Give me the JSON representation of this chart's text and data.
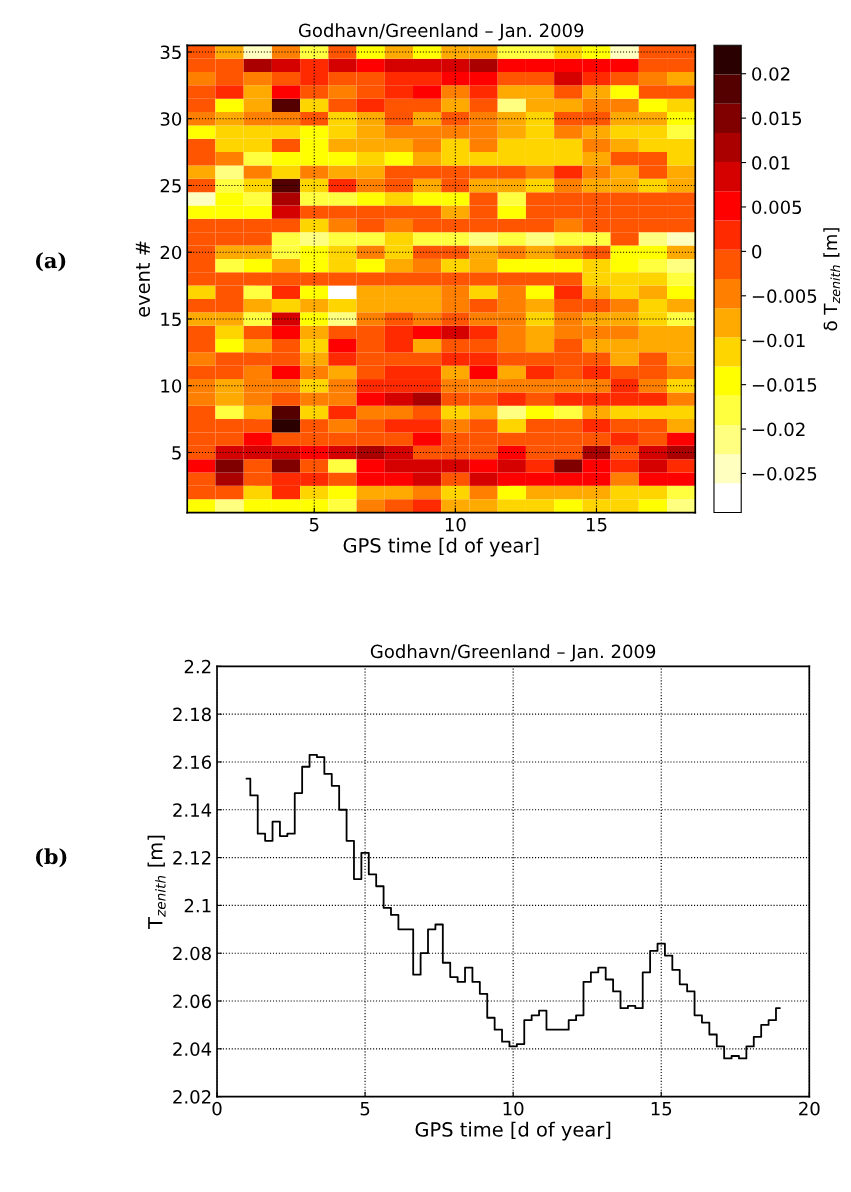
{
  "chart_data": [
    {
      "type": "heatmap",
      "title": "Godhavn/Greenland – Jan. 2009",
      "xlabel": "GPS time [d of year]",
      "ylabel": "event #",
      "clabel": "δ T$_{zenith}$ [m]",
      "annotations": [
        "(a)"
      ],
      "grid": true,
      "categories": [
        null,
        null,
        null,
        null,
        "5",
        null,
        null,
        null,
        null,
        "10",
        null,
        null,
        null,
        null,
        "15",
        null,
        null,
        null
      ],
      "y_categories": [
        "35",
        null,
        null,
        null,
        null,
        "30",
        null,
        null,
        null,
        null,
        "25",
        null,
        null,
        null,
        null,
        "20",
        null,
        null,
        null,
        null,
        "15",
        null,
        null,
        null,
        null,
        "10",
        null,
        null,
        null,
        null,
        "5",
        null,
        null,
        null,
        null
      ],
      "clim": [
        -0.0294,
        0.0232
      ],
      "cticks": [
        -0.025,
        -0.02,
        -0.015,
        -0.01,
        -0.005,
        0,
        0.005,
        0.01,
        0.015,
        0.02
      ],
      "colors": [
        "#ffffff",
        "#ffffbf",
        "#ffff80",
        "#ffff40",
        "#ffff00",
        "#ffd500",
        "#ffaa00",
        "#ff8000",
        "#ff5500",
        "#ff2a00",
        "#ff0000",
        "#d50000",
        "#aa0000",
        "#800000",
        "#550000",
        "#2a0000"
      ],
      "cells": [
        [
          -0.002,
          -0.008,
          -0.025,
          -0.005,
          -0.018,
          -0.002,
          -0.015,
          -0.008,
          -0.015,
          -0.008,
          -0.008,
          -0.018,
          -0.018,
          -0.011,
          -0.015,
          -0.025,
          -0.002,
          -0.002
        ],
        [
          -0.002,
          -0.002,
          0.012,
          0.008,
          0.002,
          0.008,
          0.005,
          0.008,
          0.008,
          0.008,
          0.012,
          0.005,
          0.005,
          0.005,
          0.005,
          0.005,
          -0.002,
          -0.002
        ],
        [
          -0.005,
          -0.002,
          -0.005,
          -0.002,
          0.002,
          -0.002,
          -0.002,
          0.002,
          0.002,
          0.005,
          0.005,
          -0.002,
          -0.002,
          0.008,
          0.002,
          -0.002,
          -0.005,
          -0.008
        ],
        [
          -0.002,
          0.002,
          -0.008,
          0.005,
          -0.002,
          -0.005,
          -0.002,
          0.002,
          0.005,
          -0.005,
          0.002,
          -0.008,
          -0.008,
          -0.002,
          -0.008,
          -0.015,
          -0.002,
          -0.002
        ],
        [
          -0.002,
          -0.015,
          -0.008,
          0.018,
          -0.011,
          -0.002,
          0.002,
          -0.002,
          -0.002,
          -0.008,
          -0.002,
          -0.021,
          -0.008,
          -0.008,
          -0.005,
          -0.005,
          -0.015,
          -0.011
        ],
        [
          -0.005,
          -0.008,
          -0.005,
          -0.005,
          -0.002,
          -0.011,
          -0.008,
          -0.002,
          -0.008,
          -0.002,
          -0.005,
          -0.008,
          -0.011,
          -0.002,
          -0.002,
          -0.008,
          -0.008,
          -0.015
        ],
        [
          -0.015,
          -0.011,
          -0.011,
          -0.011,
          -0.015,
          -0.011,
          -0.008,
          -0.005,
          -0.005,
          -0.005,
          -0.005,
          -0.008,
          -0.011,
          -0.005,
          -0.008,
          -0.011,
          -0.011,
          -0.018
        ],
        [
          -0.002,
          -0.011,
          -0.011,
          -0.002,
          -0.015,
          -0.008,
          -0.008,
          -0.008,
          -0.005,
          -0.011,
          -0.005,
          -0.011,
          -0.011,
          -0.011,
          -0.005,
          -0.008,
          -0.011,
          -0.011
        ],
        [
          -0.002,
          -0.005,
          -0.018,
          -0.015,
          -0.015,
          -0.015,
          -0.011,
          -0.015,
          -0.008,
          -0.011,
          -0.011,
          -0.011,
          -0.011,
          -0.011,
          -0.008,
          -0.002,
          -0.002,
          -0.011
        ],
        [
          -0.008,
          -0.021,
          -0.005,
          -0.011,
          -0.005,
          -0.008,
          -0.008,
          -0.002,
          -0.002,
          -0.002,
          -0.002,
          -0.002,
          -0.005,
          0.002,
          -0.005,
          -0.008,
          -0.002,
          -0.008
        ],
        [
          -0.002,
          -0.018,
          -0.011,
          0.018,
          -0.011,
          0.002,
          -0.005,
          -0.002,
          -0.008,
          -0.002,
          -0.008,
          -0.008,
          -0.011,
          -0.005,
          -0.008,
          -0.008,
          -0.011,
          -0.008
        ],
        [
          -0.025,
          -0.015,
          -0.018,
          0.012,
          -0.018,
          -0.018,
          -0.015,
          -0.011,
          -0.015,
          -0.015,
          -0.002,
          -0.018,
          -0.002,
          -0.002,
          -0.002,
          -0.002,
          -0.002,
          -0.002
        ],
        [
          -0.015,
          -0.015,
          -0.015,
          0.008,
          -0.002,
          -0.002,
          -0.002,
          -0.002,
          -0.002,
          -0.008,
          -0.002,
          -0.015,
          -0.002,
          -0.002,
          -0.002,
          -0.002,
          -0.002,
          -0.002
        ],
        [
          -0.002,
          -0.002,
          -0.002,
          -0.002,
          -0.011,
          -0.005,
          -0.002,
          -0.005,
          -0.002,
          -0.002,
          -0.002,
          -0.002,
          -0.002,
          -0.005,
          -0.002,
          -0.002,
          -0.002,
          -0.002
        ],
        [
          -0.002,
          -0.002,
          -0.002,
          -0.018,
          -0.021,
          -0.018,
          -0.018,
          -0.011,
          -0.018,
          -0.018,
          -0.021,
          -0.018,
          -0.021,
          -0.018,
          -0.018,
          -0.002,
          -0.021,
          -0.025
        ],
        [
          -0.002,
          -0.008,
          -0.008,
          -0.018,
          -0.015,
          -0.011,
          -0.005,
          -0.011,
          -0.002,
          -0.002,
          -0.008,
          -0.005,
          -0.008,
          -0.005,
          -0.002,
          -0.015,
          -0.015,
          -0.008
        ],
        [
          -0.002,
          -0.018,
          -0.015,
          -0.008,
          -0.015,
          -0.011,
          -0.015,
          -0.008,
          -0.005,
          -0.011,
          -0.008,
          -0.015,
          -0.015,
          -0.015,
          -0.011,
          -0.015,
          -0.018,
          -0.021
        ],
        [
          -0.002,
          -0.002,
          -0.002,
          -0.002,
          -0.002,
          -0.002,
          -0.002,
          -0.002,
          -0.002,
          -0.002,
          -0.002,
          -0.002,
          -0.002,
          -0.002,
          -0.011,
          -0.011,
          -0.011,
          -0.018
        ],
        [
          -0.011,
          -0.002,
          -0.018,
          0.002,
          -0.015,
          -0.028,
          -0.008,
          -0.008,
          -0.008,
          -0.005,
          -0.011,
          -0.005,
          -0.015,
          0.002,
          -0.008,
          -0.011,
          -0.008,
          -0.015
        ],
        [
          -0.002,
          -0.002,
          -0.008,
          -0.011,
          -0.008,
          -0.011,
          -0.008,
          -0.008,
          -0.008,
          -0.005,
          -0.002,
          -0.005,
          -0.008,
          -0.002,
          -0.002,
          -0.005,
          -0.011,
          -0.008
        ],
        [
          -0.008,
          -0.008,
          -0.018,
          0.008,
          -0.015,
          -0.021,
          -0.005,
          -0.002,
          -0.005,
          -0.002,
          -0.005,
          -0.005,
          -0.011,
          -0.005,
          -0.008,
          -0.008,
          -0.011,
          -0.018
        ],
        [
          -0.002,
          -0.011,
          -0.002,
          0.005,
          -0.008,
          -0.002,
          -0.002,
          0.002,
          0.005,
          0.008,
          0.002,
          -0.005,
          -0.008,
          -0.005,
          -0.005,
          -0.005,
          -0.008,
          -0.008
        ],
        [
          -0.002,
          -0.015,
          -0.008,
          -0.002,
          -0.011,
          0.005,
          -0.002,
          0.002,
          -0.008,
          -0.002,
          -0.002,
          -0.005,
          -0.008,
          -0.002,
          -0.008,
          -0.008,
          -0.008,
          -0.008
        ],
        [
          -0.005,
          -0.002,
          -0.002,
          -0.002,
          -0.008,
          0.002,
          -0.002,
          -0.002,
          -0.002,
          0.002,
          0.002,
          -0.002,
          -0.002,
          -0.002,
          -0.002,
          -0.008,
          -0.002,
          -0.008
        ],
        [
          -0.002,
          -0.002,
          -0.005,
          0.005,
          -0.005,
          -0.008,
          -0.002,
          0.002,
          0.002,
          -0.008,
          0.005,
          -0.008,
          0.002,
          -0.002,
          0.002,
          -0.002,
          -0.002,
          -0.005
        ],
        [
          -0.005,
          -0.008,
          -0.005,
          -0.005,
          -0.011,
          -0.005,
          0.002,
          0.002,
          0.002,
          -0.005,
          -0.005,
          -0.005,
          -0.005,
          -0.005,
          -0.005,
          0.002,
          -0.005,
          -0.011
        ],
        [
          -0.005,
          -0.008,
          -0.005,
          -0.002,
          -0.005,
          -0.005,
          0.005,
          0.008,
          0.012,
          -0.002,
          -0.002,
          0.002,
          -0.002,
          0.002,
          0.002,
          0.002,
          0.002,
          -0.005
        ],
        [
          -0.002,
          -0.018,
          -0.008,
          0.018,
          -0.011,
          0.002,
          -0.005,
          -0.005,
          -0.002,
          -0.011,
          -0.008,
          -0.021,
          -0.015,
          -0.018,
          -0.008,
          -0.011,
          -0.011,
          -0.011
        ],
        [
          -0.002,
          -0.002,
          -0.002,
          0.022,
          -0.002,
          -0.005,
          -0.002,
          0.002,
          0.002,
          -0.005,
          -0.002,
          -0.011,
          -0.002,
          -0.002,
          0.002,
          -0.002,
          -0.002,
          -0.008
        ],
        [
          -0.002,
          -0.002,
          0.005,
          -0.002,
          -0.002,
          -0.002,
          -0.002,
          -0.002,
          0.005,
          -0.002,
          -0.002,
          -0.002,
          -0.002,
          -0.002,
          -0.002,
          0.002,
          -0.002,
          0.005
        ],
        [
          -0.002,
          0.008,
          0.008,
          0.008,
          0.005,
          0.008,
          0.012,
          0.008,
          -0.002,
          -0.002,
          -0.002,
          0.005,
          -0.002,
          -0.002,
          0.012,
          -0.002,
          0.008,
          0.012
        ],
        [
          0.005,
          0.015,
          -0.002,
          0.015,
          -0.002,
          -0.018,
          0.005,
          0.008,
          0.008,
          0.008,
          0.005,
          0.008,
          0.002,
          0.015,
          0.005,
          0.002,
          0.008,
          0.002
        ],
        [
          -0.002,
          0.012,
          -0.002,
          0.002,
          0.002,
          -0.002,
          0.005,
          0.005,
          0.008,
          -0.002,
          0.008,
          0.005,
          0.005,
          0.005,
          0.005,
          -0.005,
          0.005,
          0.005
        ],
        [
          -0.002,
          -0.002,
          -0.011,
          0.002,
          -0.011,
          -0.015,
          -0.008,
          -0.008,
          -0.005,
          -0.011,
          -0.005,
          -0.015,
          -0.008,
          -0.008,
          -0.008,
          -0.011,
          -0.011,
          -0.018
        ],
        [
          -0.015,
          -0.021,
          -0.015,
          -0.015,
          -0.015,
          -0.018,
          -0.005,
          -0.002,
          0.002,
          -0.008,
          -0.008,
          -0.011,
          -0.011,
          -0.015,
          -0.011,
          -0.011,
          -0.015,
          -0.021
        ]
      ]
    },
    {
      "type": "step",
      "title": "Godhavn/Greenland – Jan. 2009",
      "xlabel": "GPS time [d of year]",
      "ylabel": "T$_{zenith}$ [m]",
      "annotations": [
        "(b)"
      ],
      "grid": true,
      "xlim": [
        0,
        20
      ],
      "xticks": [
        0,
        5,
        10,
        15,
        20
      ],
      "ylim": [
        2.02,
        2.2
      ],
      "yticks": [
        2.02,
        2.04,
        2.06,
        2.08,
        2.1,
        2.12,
        2.14,
        2.16,
        2.18,
        2.2
      ],
      "series": [
        {
          "color": "#000000",
          "x": [
            1.0,
            1.125,
            1.375,
            1.625,
            1.875,
            2.125,
            2.375,
            2.625,
            2.875,
            3.125,
            3.375,
            3.625,
            3.875,
            4.125,
            4.375,
            4.625,
            4.875,
            5.125,
            5.375,
            5.625,
            5.875,
            6.125,
            6.375,
            6.625,
            6.875,
            7.125,
            7.375,
            7.625,
            7.875,
            8.125,
            8.375,
            8.625,
            8.875,
            9.125,
            9.375,
            9.625,
            9.875,
            10.125,
            10.375,
            10.625,
            10.875,
            11.125,
            11.375,
            11.625,
            11.875,
            12.125,
            12.375,
            12.625,
            12.875,
            13.125,
            13.375,
            13.625,
            13.875,
            14.125,
            14.375,
            14.625,
            14.875,
            15.125,
            15.375,
            15.625,
            15.875,
            16.125,
            16.375,
            16.625,
            16.875,
            17.125,
            17.375,
            17.625,
            17.875,
            18.125,
            18.375,
            18.625,
            18.875,
            19.0
          ],
          "values": [
            2.153,
            2.146,
            2.13,
            2.127,
            2.135,
            2.129,
            2.13,
            2.147,
            2.158,
            2.163,
            2.162,
            2.155,
            2.15,
            2.14,
            2.127,
            2.111,
            2.122,
            2.113,
            2.108,
            2.099,
            2.096,
            2.09,
            2.09,
            2.071,
            2.08,
            2.09,
            2.092,
            2.076,
            2.07,
            2.068,
            2.074,
            2.068,
            2.063,
            2.053,
            2.048,
            2.043,
            2.041,
            2.042,
            2.052,
            2.054,
            2.056,
            2.048,
            2.048,
            2.048,
            2.052,
            2.054,
            2.068,
            2.072,
            2.074,
            2.069,
            2.064,
            2.057,
            2.058,
            2.057,
            2.072,
            2.081,
            2.084,
            2.079,
            2.073,
            2.067,
            2.064,
            2.054,
            2.051,
            2.046,
            2.041,
            2.036,
            2.037,
            2.036,
            2.041,
            2.045,
            2.05,
            2.052,
            2.057,
            2.057
          ]
        }
      ]
    }
  ]
}
